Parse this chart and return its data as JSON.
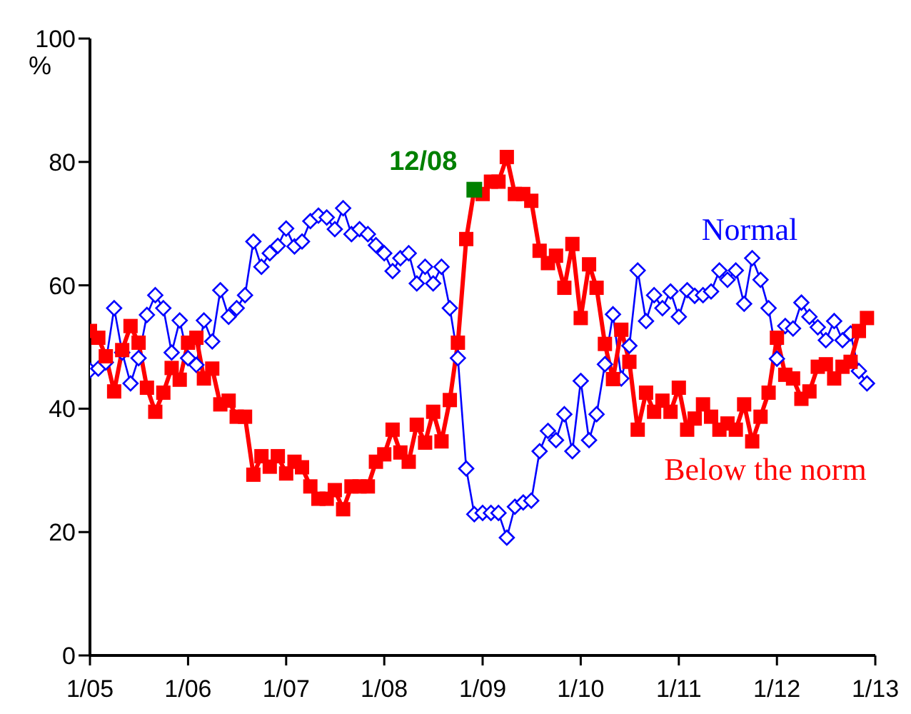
{
  "chart_data": {
    "type": "line",
    "ylabel": "%",
    "xlim": [
      "2005-01",
      "2013-01"
    ],
    "xticks": [
      {
        "value": "2005-01",
        "label": "1/05"
      },
      {
        "value": "2006-01",
        "label": "1/06"
      },
      {
        "value": "2007-01",
        "label": "1/07"
      },
      {
        "value": "2008-01",
        "label": "1/08"
      },
      {
        "value": "2009-01",
        "label": "1/09"
      },
      {
        "value": "2010-01",
        "label": "1/10"
      },
      {
        "value": "2011-01",
        "label": "1/11"
      },
      {
        "value": "2012-01",
        "label": "1/12"
      },
      {
        "value": "2013-01",
        "label": "1/13"
      }
    ],
    "ylim": [
      0,
      100
    ],
    "yticks": [
      0,
      20,
      40,
      60,
      80,
      100
    ],
    "annotations": [
      {
        "text": "12/08",
        "x": "2008-12",
        "y": 75.5
      }
    ],
    "x": [
      "2005-01",
      "2005-02",
      "2005-03",
      "2005-04",
      "2005-05",
      "2005-06",
      "2005-07",
      "2005-08",
      "2005-09",
      "2005-10",
      "2005-11",
      "2005-12",
      "2006-01",
      "2006-02",
      "2006-03",
      "2006-04",
      "2006-05",
      "2006-06",
      "2006-07",
      "2006-08",
      "2006-09",
      "2006-10",
      "2006-11",
      "2006-12",
      "2007-01",
      "2007-02",
      "2007-03",
      "2007-04",
      "2007-05",
      "2007-06",
      "2007-07",
      "2007-08",
      "2007-09",
      "2007-10",
      "2007-11",
      "2007-12",
      "2008-01",
      "2008-02",
      "2008-03",
      "2008-04",
      "2008-05",
      "2008-06",
      "2008-07",
      "2008-08",
      "2008-09",
      "2008-10",
      "2008-11",
      "2008-12",
      "2009-01",
      "2009-02",
      "2009-03",
      "2009-04",
      "2009-05",
      "2009-06",
      "2009-07",
      "2009-08",
      "2009-09",
      "2009-10",
      "2009-11",
      "2009-12",
      "2010-01",
      "2010-02",
      "2010-03",
      "2010-04",
      "2010-05",
      "2010-06",
      "2010-07",
      "2010-08",
      "2010-09",
      "2010-10",
      "2010-11",
      "2010-12",
      "2011-01",
      "2011-02",
      "2011-03",
      "2011-04",
      "2011-05",
      "2011-06",
      "2011-07",
      "2011-08",
      "2011-09",
      "2011-10",
      "2011-11",
      "2011-12",
      "2012-01",
      "2012-02",
      "2012-03",
      "2012-04",
      "2012-05",
      "2012-06",
      "2012-07",
      "2012-08",
      "2012-09",
      "2012-10",
      "2012-11",
      "2012-12"
    ],
    "series": [
      {
        "name": "Normal",
        "color": "#0000ff",
        "marker": "diamond",
        "values": [
          46.2,
          46.5,
          47.5,
          56.3,
          49.1,
          44.1,
          48.2,
          55.2,
          58.4,
          56.3,
          49.1,
          54.3,
          48.2,
          47.1,
          54.3,
          50.9,
          59.2,
          54.9,
          56.3,
          58.4,
          67.1,
          63.0,
          65.2,
          66.4,
          69.2,
          66.3,
          67.1,
          70.4,
          71.3,
          71.0,
          69.1,
          72.5,
          68.3,
          69.1,
          68.3,
          66.5,
          65.2,
          62.3,
          64.4,
          65.2,
          60.3,
          63.0,
          60.3,
          63.0,
          56.3,
          48.2,
          30.3,
          22.9,
          23.1,
          23.1,
          23.1,
          19.1,
          24.1,
          24.8,
          25.1,
          33.1,
          36.4,
          34.9,
          39.1,
          33.1,
          44.5,
          34.9,
          39.1,
          47.2,
          55.3,
          44.9,
          50.2,
          62.4,
          54.2,
          58.4,
          56.3,
          59.0,
          54.9,
          59.2,
          58.3,
          58.4,
          59.0,
          62.4,
          60.9,
          62.4,
          57.0,
          64.4,
          60.9,
          56.3,
          48.1,
          53.4,
          53.0,
          57.2,
          54.9,
          53.2,
          51.1,
          54.2,
          51.1,
          52.2,
          46.1,
          44.1
        ]
      },
      {
        "name": "Below the norm",
        "color": "#ff0000",
        "marker": "square",
        "values": [
          52.6,
          51.5,
          48.5,
          42.8,
          49.5,
          53.4,
          50.7,
          43.4,
          39.5,
          42.6,
          46.6,
          44.7,
          50.7,
          51.5,
          44.9,
          46.5,
          40.7,
          41.3,
          38.7,
          38.7,
          29.3,
          32.3,
          30.6,
          32.3,
          29.5,
          31.4,
          30.5,
          27.4,
          25.4,
          25.4,
          26.8,
          23.7,
          27.4,
          27.4,
          27.4,
          31.4,
          32.6,
          36.6,
          32.9,
          31.4,
          37.4,
          34.5,
          39.5,
          34.7,
          41.4,
          50.7,
          67.5,
          75.5,
          74.8,
          76.8,
          76.8,
          80.8,
          74.8,
          74.8,
          73.7,
          65.6,
          63.6,
          64.8,
          59.6,
          66.7,
          54.7,
          63.4,
          59.6,
          50.5,
          44.8,
          52.8,
          47.6,
          36.6,
          42.6,
          39.5,
          41.3,
          39.5,
          43.4,
          36.6,
          38.4,
          40.7,
          38.7,
          36.6,
          37.6,
          36.6,
          40.7,
          34.7,
          38.7,
          42.6,
          51.5,
          45.5,
          44.9,
          41.6,
          42.8,
          46.8,
          47.2,
          44.9,
          46.8,
          47.6,
          52.6,
          54.7
        ]
      },
      {
        "type": "scatter",
        "color": "#008000",
        "marker": "square",
        "x": [
          "2008-12"
        ],
        "values": [
          75.5
        ]
      }
    ]
  }
}
